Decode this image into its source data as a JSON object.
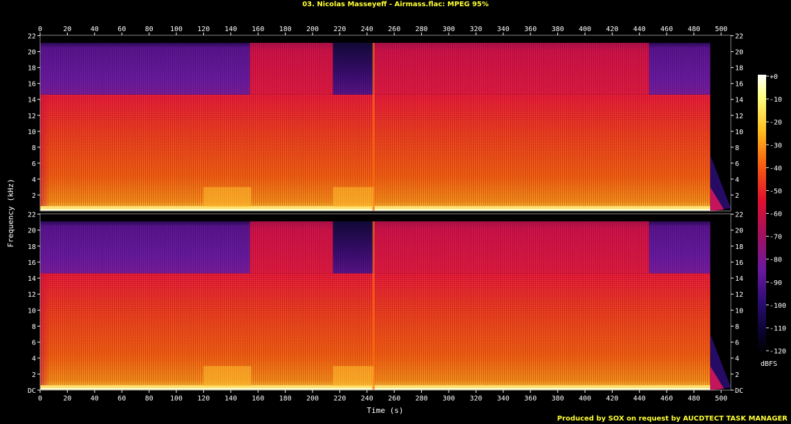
{
  "title": "03. Nicolas Masseyeff - Airmass.flac: MPEG 95%",
  "footer": "Produced by SOX on request by AUCDTECT TASK MANAGER",
  "chart_data": {
    "type": "heatmap",
    "title": "03. Nicolas Masseyeff - Airmass.flac: MPEG 95%",
    "xlabel": "Time (s)",
    "ylabel": "Frequency (kHz)",
    "colorbar_label": "dBFS",
    "xlim": [
      0,
      492
    ],
    "ylim_khz": [
      0,
      22.05
    ],
    "x_ticks": [
      "0",
      "20",
      "40",
      "60",
      "80",
      "100",
      "120",
      "140",
      "160",
      "180",
      "200",
      "220",
      "240",
      "260",
      "280",
      "300",
      "320",
      "340",
      "360",
      "380",
      "400",
      "420",
      "440",
      "460",
      "480",
      "500"
    ],
    "y_ticks_top": [
      "2",
      "4",
      "6",
      "8",
      "10",
      "12",
      "14",
      "16",
      "18",
      "20",
      "22"
    ],
    "y_ticks_bottom": [
      "DC",
      "2",
      "4",
      "6",
      "8",
      "10",
      "12",
      "14",
      "16",
      "18",
      "20",
      "22"
    ],
    "colorbar_ticks": [
      "+0",
      "-10",
      "-20",
      "-30",
      "-40",
      "-50",
      "-60",
      "-70",
      "-80",
      "-90",
      "-100",
      "-110",
      "-120"
    ],
    "channels": 2,
    "spectral_cutoff_khz": 14.6,
    "segments": [
      {
        "start": 0,
        "end": 46,
        "note": "cutoff ~14.6 kHz, purple above"
      },
      {
        "start": 46,
        "end": 154,
        "note": "cutoff ~14.6 kHz, purple above"
      },
      {
        "start": 154,
        "end": 215,
        "note": "full band to 21 kHz"
      },
      {
        "start": 215,
        "end": 245,
        "note": "cutoff ~14.6 kHz, dark above"
      },
      {
        "start": 245,
        "end": 447,
        "note": "full band to 21 kHz"
      },
      {
        "start": 447,
        "end": 492,
        "note": "cutoff ~14.6 kHz, purple above"
      }
    ]
  }
}
